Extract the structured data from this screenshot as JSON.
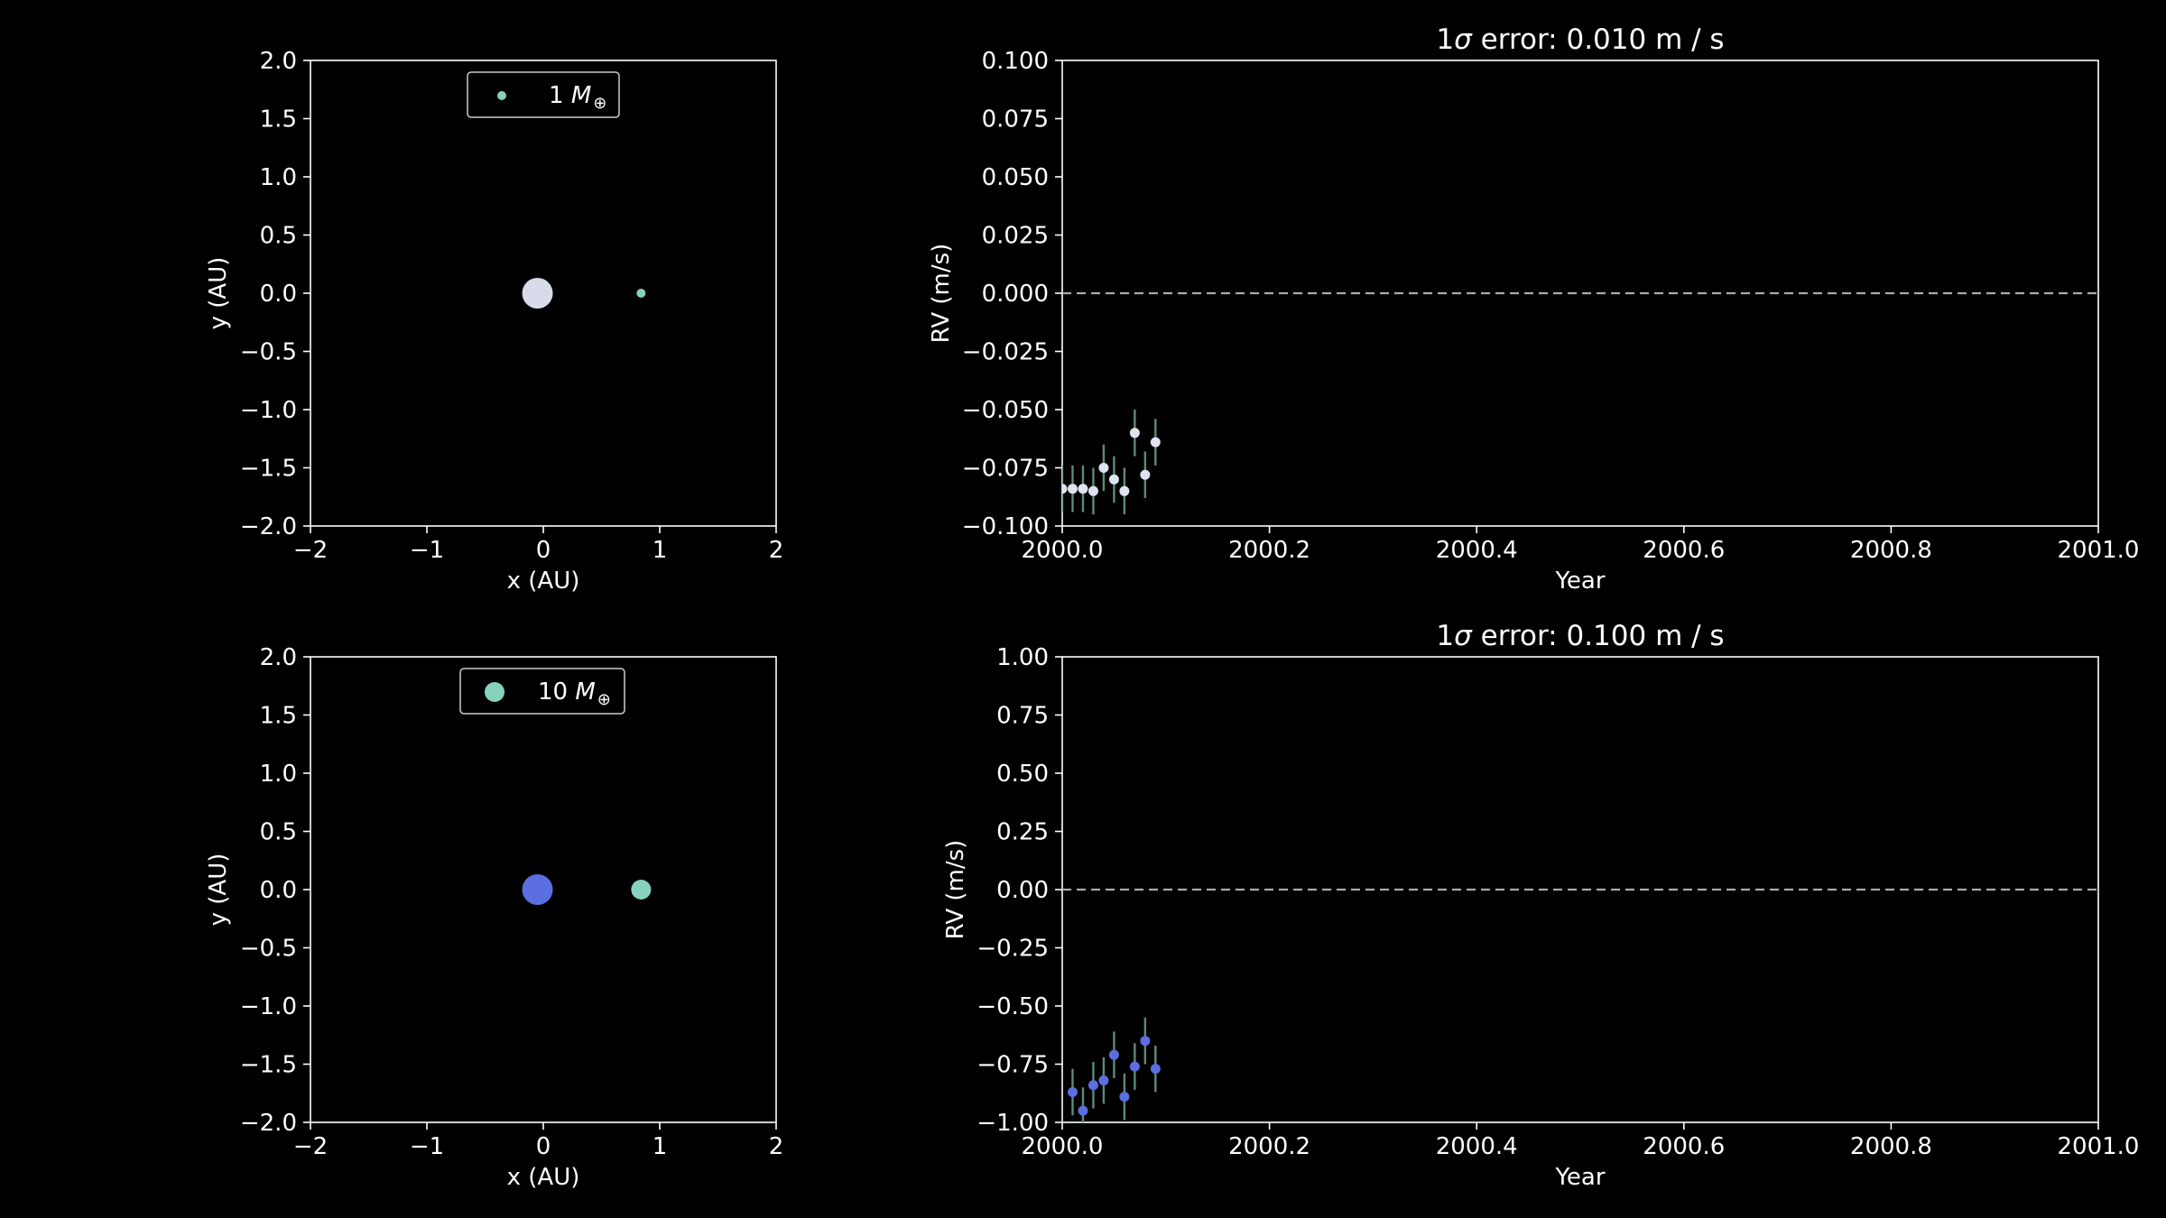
{
  "colors": {
    "background": "#000000",
    "axes": "#ffffff",
    "star_light": "#d8dcea",
    "star_blue": "#5b6fe0",
    "planet": "#86d2bf",
    "errorbar": "#5f8a7a",
    "rv_white": "#dfe3f0",
    "rv_blue": "#5b6fe0",
    "zero_line": "#aaaaaa"
  },
  "chart_data": [
    {
      "id": "orbit-top",
      "type": "scatter",
      "xlabel": "x (AU)",
      "ylabel": "y (AU)",
      "xlim": [
        -2,
        2
      ],
      "ylim": [
        -2,
        2
      ],
      "xticks": [
        "−2",
        "−1",
        "0",
        "1",
        "2"
      ],
      "yticks": [
        "2.0",
        "1.5",
        "1.0",
        "0.5",
        "0.0",
        "−0.5",
        "−1.0",
        "−1.5",
        "−2.0"
      ],
      "legend": {
        "location": "upper center",
        "label_prefix": "1 ",
        "label_symbol": "M",
        "label_sub": "⊕"
      },
      "grid": false,
      "star": {
        "x": -0.05,
        "y": 0.0,
        "color": "star_light"
      },
      "planet": {
        "x": 0.84,
        "y": 0.0,
        "color": "planet",
        "size": "small"
      }
    },
    {
      "id": "rv-top",
      "type": "scatter",
      "title_prefix": "1",
      "title_sigma": "σ",
      "title_rest": " error: 0.010 m / s",
      "xlabel": "Year",
      "ylabel": "RV (m/s)",
      "xlim": [
        2000.0,
        2001.0
      ],
      "ylim": [
        -0.1,
        0.1
      ],
      "xticks": [
        "2000.0",
        "2000.2",
        "2000.4",
        "2000.6",
        "2000.8",
        "2001.0"
      ],
      "yticks": [
        "0.100",
        "0.075",
        "0.050",
        "0.025",
        "0.000",
        "−0.025",
        "−0.050",
        "−0.075",
        "−0.100"
      ],
      "reference_line": {
        "y": 0.0,
        "style": "dashed"
      },
      "grid": false,
      "error": 0.01,
      "series": [
        {
          "x": [
            2000.0,
            2000.01,
            2000.02,
            2000.03,
            2000.04,
            2000.05,
            2000.06,
            2000.07,
            2000.08,
            2000.09
          ],
          "y": [
            -0.084,
            -0.084,
            -0.084,
            -0.085,
            -0.075,
            -0.08,
            -0.085,
            -0.06,
            -0.078,
            -0.064
          ]
        }
      ]
    },
    {
      "id": "orbit-bottom",
      "type": "scatter",
      "xlabel": "x (AU)",
      "ylabel": "y (AU)",
      "xlim": [
        -2,
        2
      ],
      "ylim": [
        -2,
        2
      ],
      "xticks": [
        "−2",
        "−1",
        "0",
        "1",
        "2"
      ],
      "yticks": [
        "2.0",
        "1.5",
        "1.0",
        "0.5",
        "0.0",
        "−0.5",
        "−1.0",
        "−1.5",
        "−2.0"
      ],
      "legend": {
        "location": "upper center",
        "label_prefix": "10 ",
        "label_symbol": "M",
        "label_sub": "⊕"
      },
      "grid": false,
      "star": {
        "x": -0.05,
        "y": 0.0,
        "color": "star_blue"
      },
      "planet": {
        "x": 0.84,
        "y": 0.0,
        "color": "planet",
        "size": "large"
      }
    },
    {
      "id": "rv-bottom",
      "type": "scatter",
      "title_prefix": "1",
      "title_sigma": "σ",
      "title_rest": " error: 0.100 m / s",
      "xlabel": "Year",
      "ylabel": "RV (m/s)",
      "xlim": [
        2000.0,
        2001.0
      ],
      "ylim": [
        -1.0,
        1.0
      ],
      "xticks": [
        "2000.0",
        "2000.2",
        "2000.4",
        "2000.6",
        "2000.8",
        "2001.0"
      ],
      "yticks": [
        "1.00",
        "0.75",
        "0.50",
        "0.25",
        "0.00",
        "−0.25",
        "−0.50",
        "−0.75",
        "−1.00"
      ],
      "reference_line": {
        "y": 0.0,
        "style": "dashed"
      },
      "grid": false,
      "error": 0.1,
      "series": [
        {
          "x": [
            2000.01,
            2000.02,
            2000.03,
            2000.04,
            2000.05,
            2000.06,
            2000.07,
            2000.08,
            2000.09
          ],
          "y": [
            -0.87,
            -0.95,
            -0.84,
            -0.82,
            -0.71,
            -0.89,
            -0.76,
            -0.65,
            -0.77
          ]
        }
      ]
    }
  ]
}
